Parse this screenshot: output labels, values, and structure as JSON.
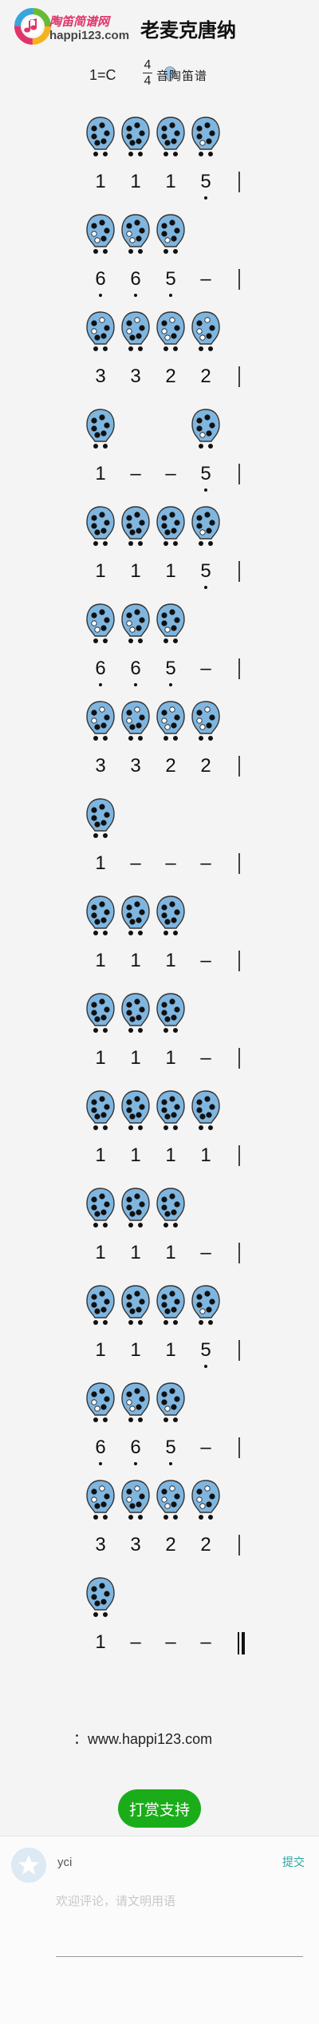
{
  "header": {
    "site_name": "陶笛简谱网",
    "site_url": "happi123.com",
    "song_title": "老麦克唐纳",
    "key": "1=C",
    "meter_top": "4",
    "meter_bottom": "4",
    "ocarina_label": "音陶笛谱",
    "colors": {
      "brand_pink": "#e0356b",
      "ocarina_blue": "#7fb6e0"
    }
  },
  "score": {
    "rows": [
      {
        "notes": [
          {
            "f": [
              1,
              1,
              1,
              1,
              1,
              1
            ],
            "n": "1",
            "d": ""
          },
          {
            "f": [
              1,
              1,
              1,
              1,
              1,
              1
            ],
            "n": "1",
            "d": ""
          },
          {
            "f": [
              1,
              1,
              1,
              1,
              1,
              1
            ],
            "n": "1",
            "d": ""
          },
          {
            "f": [
              1,
              1,
              1,
              1,
              1,
              0
            ],
            "n": "5",
            "d": "below"
          }
        ],
        "bar": "single"
      },
      {
        "notes": [
          {
            "f": [
              1,
              1,
              1,
              0,
              1,
              0
            ],
            "n": "6",
            "d": "below"
          },
          {
            "f": [
              1,
              1,
              1,
              0,
              1,
              0
            ],
            "n": "6",
            "d": "below"
          },
          {
            "f": [
              1,
              1,
              1,
              1,
              1,
              0
            ],
            "n": "5",
            "d": "below"
          },
          {
            "f": [],
            "n": "–",
            "d": ""
          }
        ],
        "bar": "single"
      },
      {
        "notes": [
          {
            "f": [
              1,
              0,
              1,
              0,
              1,
              1
            ],
            "n": "3",
            "d": ""
          },
          {
            "f": [
              1,
              0,
              1,
              0,
              1,
              1
            ],
            "n": "3",
            "d": ""
          },
          {
            "f": [
              1,
              0,
              1,
              0,
              1,
              0
            ],
            "n": "2",
            "d": ""
          },
          {
            "f": [
              1,
              0,
              1,
              0,
              1,
              0
            ],
            "n": "2",
            "d": ""
          }
        ],
        "bar": "single"
      },
      {
        "notes": [
          {
            "f": [
              1,
              1,
              1,
              1,
              1,
              1
            ],
            "n": "1",
            "d": ""
          },
          {
            "f": [],
            "n": "–",
            "d": ""
          },
          {
            "f": [],
            "n": "–",
            "d": ""
          },
          {
            "f": [
              1,
              1,
              1,
              1,
              1,
              0
            ],
            "n": "5",
            "d": "below"
          }
        ],
        "bar": "single"
      },
      {
        "notes": [
          {
            "f": [
              1,
              1,
              1,
              1,
              1,
              1
            ],
            "n": "1",
            "d": ""
          },
          {
            "f": [
              1,
              1,
              1,
              1,
              1,
              1
            ],
            "n": "1",
            "d": ""
          },
          {
            "f": [
              1,
              1,
              1,
              1,
              1,
              1
            ],
            "n": "1",
            "d": ""
          },
          {
            "f": [
              1,
              1,
              1,
              1,
              1,
              0
            ],
            "n": "5",
            "d": "below"
          }
        ],
        "bar": "single"
      },
      {
        "notes": [
          {
            "f": [
              1,
              1,
              1,
              0,
              1,
              0
            ],
            "n": "6",
            "d": "below"
          },
          {
            "f": [
              1,
              1,
              1,
              0,
              1,
              0
            ],
            "n": "6",
            "d": "below"
          },
          {
            "f": [
              1,
              1,
              1,
              1,
              1,
              0
            ],
            "n": "5",
            "d": "below"
          },
          {
            "f": [],
            "n": "–",
            "d": ""
          }
        ],
        "bar": "single"
      },
      {
        "notes": [
          {
            "f": [
              1,
              0,
              1,
              0,
              1,
              1
            ],
            "n": "3",
            "d": ""
          },
          {
            "f": [
              1,
              0,
              1,
              0,
              1,
              1
            ],
            "n": "3",
            "d": ""
          },
          {
            "f": [
              1,
              0,
              1,
              0,
              1,
              0
            ],
            "n": "2",
            "d": ""
          },
          {
            "f": [
              1,
              0,
              1,
              0,
              1,
              0
            ],
            "n": "2",
            "d": ""
          }
        ],
        "bar": "single"
      },
      {
        "notes": [
          {
            "f": [
              1,
              1,
              1,
              1,
              1,
              1
            ],
            "n": "1",
            "d": ""
          },
          {
            "f": [],
            "n": "–",
            "d": ""
          },
          {
            "f": [],
            "n": "–",
            "d": ""
          },
          {
            "f": [],
            "n": "–",
            "d": ""
          }
        ],
        "bar": "single"
      },
      {
        "notes": [
          {
            "f": [
              1,
              1,
              1,
              1,
              1,
              1
            ],
            "n": "1",
            "d": ""
          },
          {
            "f": [
              1,
              1,
              1,
              1,
              1,
              1
            ],
            "n": "1",
            "d": ""
          },
          {
            "f": [
              1,
              1,
              1,
              1,
              1,
              1
            ],
            "n": "1",
            "d": ""
          },
          {
            "f": [],
            "n": "–",
            "d": ""
          }
        ],
        "bar": "single"
      },
      {
        "notes": [
          {
            "f": [
              1,
              1,
              1,
              1,
              1,
              1
            ],
            "n": "1",
            "d": ""
          },
          {
            "f": [
              1,
              1,
              1,
              1,
              1,
              1
            ],
            "n": "1",
            "d": ""
          },
          {
            "f": [
              1,
              1,
              1,
              1,
              1,
              1
            ],
            "n": "1",
            "d": ""
          },
          {
            "f": [],
            "n": "–",
            "d": ""
          }
        ],
        "bar": "single"
      },
      {
        "notes": [
          {
            "f": [
              1,
              1,
              1,
              1,
              1,
              1
            ],
            "n": "1",
            "d": ""
          },
          {
            "f": [
              1,
              1,
              1,
              1,
              1,
              1
            ],
            "n": "1",
            "d": ""
          },
          {
            "f": [
              1,
              1,
              1,
              1,
              1,
              1
            ],
            "n": "1",
            "d": ""
          },
          {
            "f": [
              1,
              1,
              1,
              1,
              1,
              1
            ],
            "n": "1",
            "d": ""
          }
        ],
        "bar": "single"
      },
      {
        "notes": [
          {
            "f": [
              1,
              1,
              1,
              1,
              1,
              1
            ],
            "n": "1",
            "d": ""
          },
          {
            "f": [
              1,
              1,
              1,
              1,
              1,
              1
            ],
            "n": "1",
            "d": ""
          },
          {
            "f": [
              1,
              1,
              1,
              1,
              1,
              1
            ],
            "n": "1",
            "d": ""
          },
          {
            "f": [],
            "n": "–",
            "d": ""
          }
        ],
        "bar": "single"
      },
      {
        "notes": [
          {
            "f": [
              1,
              1,
              1,
              1,
              1,
              1
            ],
            "n": "1",
            "d": ""
          },
          {
            "f": [
              1,
              1,
              1,
              1,
              1,
              1
            ],
            "n": "1",
            "d": ""
          },
          {
            "f": [
              1,
              1,
              1,
              1,
              1,
              1
            ],
            "n": "1",
            "d": ""
          },
          {
            "f": [
              1,
              1,
              1,
              1,
              1,
              0
            ],
            "n": "5",
            "d": "below"
          }
        ],
        "bar": "single"
      },
      {
        "notes": [
          {
            "f": [
              1,
              1,
              1,
              0,
              1,
              0
            ],
            "n": "6",
            "d": "below"
          },
          {
            "f": [
              1,
              1,
              1,
              0,
              1,
              0
            ],
            "n": "6",
            "d": "below"
          },
          {
            "f": [
              1,
              1,
              1,
              1,
              1,
              0
            ],
            "n": "5",
            "d": "below"
          },
          {
            "f": [],
            "n": "–",
            "d": ""
          }
        ],
        "bar": "single"
      },
      {
        "notes": [
          {
            "f": [
              1,
              0,
              1,
              0,
              1,
              1
            ],
            "n": "3",
            "d": ""
          },
          {
            "f": [
              1,
              0,
              1,
              0,
              1,
              1
            ],
            "n": "3",
            "d": ""
          },
          {
            "f": [
              1,
              0,
              1,
              0,
              1,
              0
            ],
            "n": "2",
            "d": ""
          },
          {
            "f": [
              1,
              0,
              1,
              0,
              1,
              0
            ],
            "n": "2",
            "d": ""
          }
        ],
        "bar": "single"
      },
      {
        "notes": [
          {
            "f": [
              1,
              1,
              1,
              1,
              1,
              1
            ],
            "n": "1",
            "d": ""
          },
          {
            "f": [],
            "n": "–",
            "d": ""
          },
          {
            "f": [],
            "n": "–",
            "d": ""
          },
          {
            "f": [],
            "n": "–",
            "d": ""
          }
        ],
        "bar": "final"
      }
    ]
  },
  "footer": {
    "url_text": "：www.happi123.com",
    "reward_button": "打赏支持"
  },
  "comment": {
    "user_name": "yci",
    "submit_label": "提交",
    "placeholder": "欢迎评论，请文明用语"
  }
}
